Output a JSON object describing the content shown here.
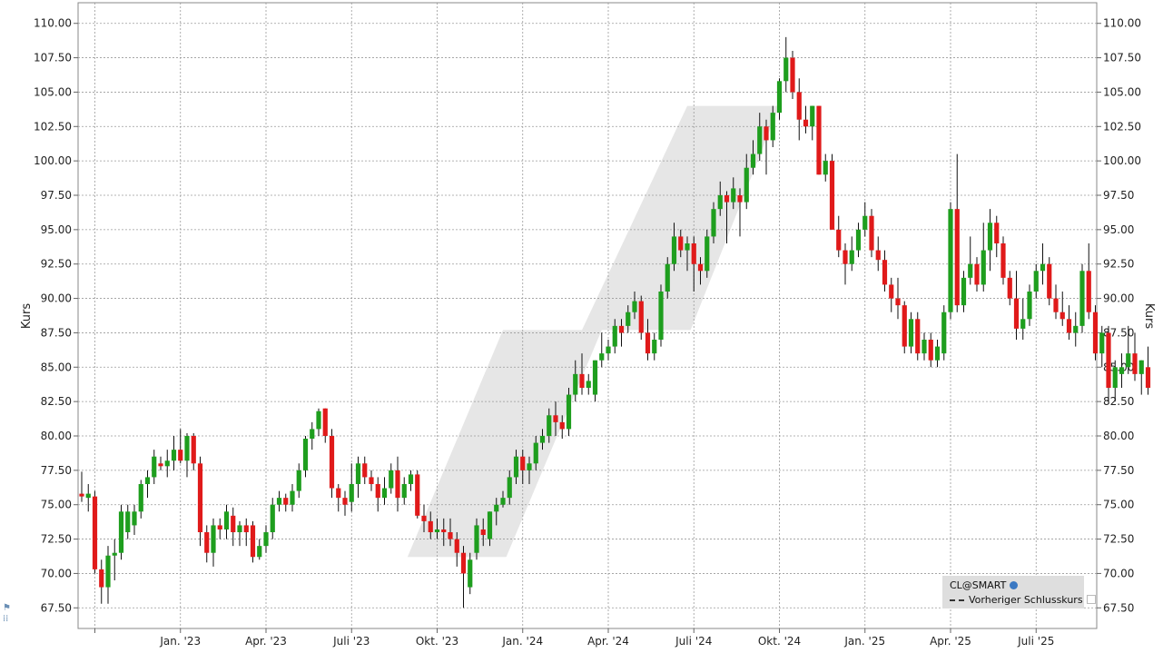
{
  "chart_data": {
    "type": "candlestick",
    "ylabel_left": "Kurs",
    "ylabel_right": "Kurs",
    "ylim": [
      66,
      111.5
    ],
    "y_ticks": [
      "67.50",
      "70.00",
      "72.50",
      "75.00",
      "77.50",
      "80.00",
      "82.50",
      "85.00",
      "87.50",
      "90.00",
      "92.50",
      "95.00",
      "97.50",
      "100.00",
      "102.50",
      "105.00",
      "107.50",
      "110.00"
    ],
    "x_ticks": [
      {
        "label": "Jan. '23",
        "week": 15
      },
      {
        "label": "Apr. '23",
        "week": 28
      },
      {
        "label": "Juli '23",
        "week": 41
      },
      {
        "label": "Okt. '23",
        "week": 54
      },
      {
        "label": "Jan. '24",
        "week": 67
      },
      {
        "label": "Apr. '24",
        "week": 80
      },
      {
        "label": "Juli '24",
        "week": 93
      },
      {
        "label": "Okt. '24",
        "week": 106
      },
      {
        "label": "Jan. '25",
        "week": 119
      },
      {
        "label": "Apr. '25",
        "week": 132
      },
      {
        "label": "Juli '25",
        "week": 145
      }
    ],
    "up_color": "#1e9e1e",
    "down_color": "#e01a1a",
    "shaded_channel_color": "#e6e6e6",
    "candles": [
      [
        75.8,
        77.4,
        75.2,
        75.6
      ],
      [
        75.5,
        76.5,
        74.5,
        75.8
      ],
      [
        75.6,
        76.0,
        70.0,
        70.3
      ],
      [
        70.3,
        71.0,
        67.8,
        69.0
      ],
      [
        69.0,
        72.0,
        67.8,
        71.3
      ],
      [
        71.3,
        72.5,
        69.5,
        71.5
      ],
      [
        71.5,
        75.0,
        71.0,
        74.5
      ],
      [
        73.0,
        75.0,
        72.5,
        74.5
      ],
      [
        73.5,
        75.0,
        72.8,
        74.5
      ],
      [
        74.5,
        76.8,
        74.0,
        76.5
      ],
      [
        76.5,
        77.5,
        75.5,
        77.0
      ],
      [
        77.0,
        79.0,
        76.5,
        78.5
      ],
      [
        78.0,
        78.5,
        77.5,
        77.8
      ],
      [
        77.8,
        79.0,
        77.0,
        78.2
      ],
      [
        78.2,
        80.0,
        77.5,
        79.0
      ],
      [
        79.0,
        80.5,
        78.0,
        78.2
      ],
      [
        78.2,
        80.2,
        77.0,
        80.0
      ],
      [
        80.0,
        80.2,
        77.5,
        78.0
      ],
      [
        78.0,
        78.5,
        72.0,
        73.0
      ],
      [
        73.0,
        73.5,
        70.8,
        71.5
      ],
      [
        71.5,
        74.0,
        70.5,
        73.5
      ],
      [
        73.5,
        74.0,
        72.5,
        73.2
      ],
      [
        73.2,
        75.0,
        72.5,
        74.5
      ],
      [
        74.2,
        74.8,
        72.0,
        73.0
      ],
      [
        73.0,
        73.8,
        72.0,
        73.5
      ],
      [
        73.5,
        74.0,
        72.0,
        73.0
      ],
      [
        73.5,
        73.8,
        70.8,
        71.2
      ],
      [
        71.2,
        72.5,
        71.0,
        72.0
      ],
      [
        72.0,
        73.5,
        71.5,
        73.0
      ],
      [
        73.0,
        75.5,
        72.5,
        75.0
      ],
      [
        75.0,
        76.0,
        74.5,
        75.5
      ],
      [
        75.5,
        75.8,
        74.5,
        75.0
      ],
      [
        75.0,
        76.5,
        74.5,
        76.0
      ],
      [
        76.0,
        78.0,
        75.5,
        77.5
      ],
      [
        77.5,
        80.0,
        77.0,
        79.8
      ],
      [
        79.8,
        81.0,
        79.0,
        80.5
      ],
      [
        80.5,
        82.0,
        80.0,
        81.8
      ],
      [
        82.0,
        82.0,
        79.5,
        80.0
      ],
      [
        80.0,
        80.5,
        75.5,
        76.2
      ],
      [
        76.2,
        76.5,
        74.5,
        75.5
      ],
      [
        75.5,
        76.0,
        74.2,
        75.0
      ],
      [
        75.2,
        78.0,
        74.5,
        76.5
      ],
      [
        76.5,
        78.5,
        75.5,
        78.0
      ],
      [
        78.0,
        78.5,
        76.5,
        77.0
      ],
      [
        77.0,
        77.5,
        76.0,
        76.5
      ],
      [
        76.5,
        77.0,
        74.5,
        75.5
      ],
      [
        75.5,
        77.0,
        75.0,
        76.2
      ],
      [
        76.2,
        78.0,
        75.8,
        77.5
      ],
      [
        77.5,
        78.5,
        74.5,
        75.5
      ],
      [
        75.5,
        77.0,
        75.0,
        76.5
      ],
      [
        76.5,
        77.5,
        76.0,
        77.2
      ],
      [
        77.2,
        77.5,
        74.0,
        74.2
      ],
      [
        74.2,
        75.0,
        73.0,
        73.8
      ],
      [
        73.8,
        74.5,
        72.5,
        73.0
      ],
      [
        73.0,
        74.0,
        72.5,
        73.2
      ],
      [
        73.2,
        74.0,
        72.0,
        73.0
      ],
      [
        73.0,
        74.0,
        72.0,
        72.5
      ],
      [
        72.5,
        73.0,
        70.5,
        71.5
      ],
      [
        71.5,
        72.0,
        67.5,
        70.0
      ],
      [
        69.0,
        71.5,
        68.5,
        71.0
      ],
      [
        71.5,
        74.0,
        71.0,
        73.5
      ],
      [
        73.2,
        74.0,
        72.0,
        72.8
      ],
      [
        72.5,
        74.5,
        72.0,
        74.5
      ],
      [
        74.5,
        75.5,
        73.5,
        75.0
      ],
      [
        75.0,
        76.0,
        74.8,
        75.5
      ],
      [
        75.5,
        77.5,
        75.0,
        77.0
      ],
      [
        77.0,
        79.0,
        76.5,
        78.5
      ],
      [
        78.5,
        79.0,
        76.5,
        77.5
      ],
      [
        77.5,
        78.5,
        76.5,
        78.0
      ],
      [
        78.0,
        80.0,
        77.5,
        79.5
      ],
      [
        79.5,
        80.5,
        79.0,
        80.0
      ],
      [
        80.0,
        82.0,
        79.5,
        81.5
      ],
      [
        81.5,
        82.5,
        80.0,
        81.0
      ],
      [
        81.0,
        81.5,
        79.8,
        80.5
      ],
      [
        80.5,
        83.5,
        80.0,
        83.0
      ],
      [
        83.0,
        85.5,
        82.5,
        84.5
      ],
      [
        84.5,
        86.0,
        83.0,
        83.5
      ],
      [
        83.5,
        84.5,
        83.0,
        84.0
      ],
      [
        83.0,
        85.5,
        82.5,
        85.5
      ],
      [
        85.5,
        87.5,
        85.0,
        86.0
      ],
      [
        86.0,
        87.0,
        85.5,
        86.5
      ],
      [
        86.5,
        88.5,
        86.0,
        88.0
      ],
      [
        88.0,
        88.5,
        86.5,
        87.5
      ],
      [
        88.0,
        89.5,
        87.5,
        89.0
      ],
      [
        89.0,
        90.5,
        88.5,
        89.8
      ],
      [
        89.8,
        90.2,
        87.0,
        87.5
      ],
      [
        87.5,
        88.5,
        85.5,
        86.0
      ],
      [
        86.0,
        87.5,
        85.5,
        87.0
      ],
      [
        87.0,
        91.0,
        86.5,
        90.5
      ],
      [
        90.5,
        93.0,
        90.0,
        92.5
      ],
      [
        92.5,
        95.5,
        92.0,
        94.5
      ],
      [
        94.5,
        95.0,
        93.0,
        93.5
      ],
      [
        93.5,
        94.5,
        92.0,
        94.0
      ],
      [
        94.0,
        94.5,
        90.5,
        92.5
      ],
      [
        92.5,
        93.0,
        91.0,
        92.0
      ],
      [
        92.0,
        95.0,
        91.5,
        94.5
      ],
      [
        94.5,
        97.0,
        94.0,
        96.5
      ],
      [
        96.5,
        98.5,
        96.0,
        97.5
      ],
      [
        97.5,
        97.8,
        94.0,
        97.0
      ],
      [
        97.0,
        98.8,
        96.5,
        98.0
      ],
      [
        97.5,
        98.0,
        94.5,
        97.0
      ],
      [
        97.0,
        100.5,
        96.5,
        99.5
      ],
      [
        99.5,
        101.5,
        99.0,
        100.5
      ],
      [
        100.5,
        103.5,
        100.0,
        102.5
      ],
      [
        102.5,
        103.0,
        99.0,
        101.5
      ],
      [
        101.5,
        104.0,
        101.0,
        103.5
      ],
      [
        103.5,
        106.0,
        103.0,
        105.8
      ],
      [
        105.8,
        109.0,
        105.0,
        107.5
      ],
      [
        107.5,
        108.0,
        104.5,
        105.0
      ],
      [
        105.0,
        106.0,
        101.5,
        103.0
      ],
      [
        103.0,
        104.0,
        102.0,
        102.5
      ],
      [
        102.5,
        104.0,
        101.5,
        104.0
      ],
      [
        104.0,
        104.0,
        99.0,
        99.0
      ],
      [
        99.0,
        100.5,
        98.5,
        100.0
      ],
      [
        100.0,
        100.5,
        95.0,
        95.0
      ],
      [
        95.0,
        96.0,
        93.0,
        93.5
      ],
      [
        93.5,
        94.0,
        91.0,
        92.5
      ],
      [
        92.5,
        94.5,
        92.0,
        93.5
      ],
      [
        93.5,
        95.5,
        93.0,
        95.0
      ],
      [
        95.0,
        97.0,
        94.5,
        96.0
      ],
      [
        96.0,
        96.5,
        93.0,
        93.5
      ],
      [
        93.5,
        94.5,
        92.0,
        92.8
      ],
      [
        92.8,
        93.5,
        90.5,
        91.0
      ],
      [
        91.0,
        91.5,
        89.0,
        90.0
      ],
      [
        90.0,
        91.5,
        88.5,
        89.5
      ],
      [
        89.5,
        89.8,
        86.0,
        86.5
      ],
      [
        86.5,
        89.0,
        86.0,
        88.5
      ],
      [
        88.5,
        89.0,
        85.5,
        86.0
      ],
      [
        86.0,
        87.5,
        85.5,
        87.0
      ],
      [
        87.0,
        87.5,
        85.0,
        85.5
      ],
      [
        85.5,
        87.0,
        85.0,
        86.5
      ],
      [
        86.0,
        89.5,
        85.5,
        89.0
      ],
      [
        89.0,
        97.0,
        88.5,
        96.5
      ],
      [
        96.5,
        100.5,
        89.0,
        89.5
      ],
      [
        89.5,
        92.0,
        89.0,
        91.5
      ],
      [
        91.5,
        94.5,
        91.0,
        92.5
      ],
      [
        92.5,
        93.0,
        90.5,
        91.0
      ],
      [
        91.0,
        95.5,
        90.5,
        93.5
      ],
      [
        93.5,
        96.5,
        92.0,
        95.5
      ],
      [
        95.5,
        96.0,
        93.0,
        94.0
      ],
      [
        94.0,
        94.5,
        91.0,
        91.5
      ],
      [
        91.5,
        92.0,
        89.5,
        90.0
      ],
      [
        90.0,
        92.0,
        87.0,
        87.8
      ],
      [
        87.8,
        90.0,
        87.0,
        88.5
      ],
      [
        88.5,
        91.0,
        88.0,
        90.5
      ],
      [
        90.5,
        92.5,
        90.0,
        92.0
      ],
      [
        92.0,
        94.0,
        91.0,
        92.5
      ],
      [
        92.5,
        93.0,
        89.5,
        90.0
      ],
      [
        90.0,
        91.0,
        88.5,
        89.0
      ],
      [
        89.0,
        90.5,
        88.0,
        88.5
      ],
      [
        88.5,
        89.5,
        87.0,
        87.5
      ],
      [
        87.5,
        89.0,
        86.5,
        88.0
      ],
      [
        88.0,
        92.5,
        87.5,
        92.0
      ],
      [
        92.0,
        94.0,
        88.5,
        89.0
      ],
      [
        89.0,
        89.5,
        85.5,
        86.0
      ],
      [
        86.0,
        88.0,
        85.0,
        87.5
      ],
      [
        87.5,
        88.0,
        82.5,
        83.5
      ],
      [
        83.5,
        85.5,
        82.5,
        85.0
      ],
      [
        84.5,
        86.0,
        83.5,
        85.0
      ],
      [
        85.0,
        88.0,
        84.5,
        86.0
      ],
      [
        86.0,
        87.5,
        84.0,
        84.5
      ],
      [
        84.5,
        85.5,
        83.0,
        85.5
      ],
      [
        85.0,
        86.5,
        83.0,
        83.5
      ]
    ]
  },
  "legend": {
    "symbol": "CL@SMART",
    "previous_close": "Vorheriger Schlusskurs"
  }
}
